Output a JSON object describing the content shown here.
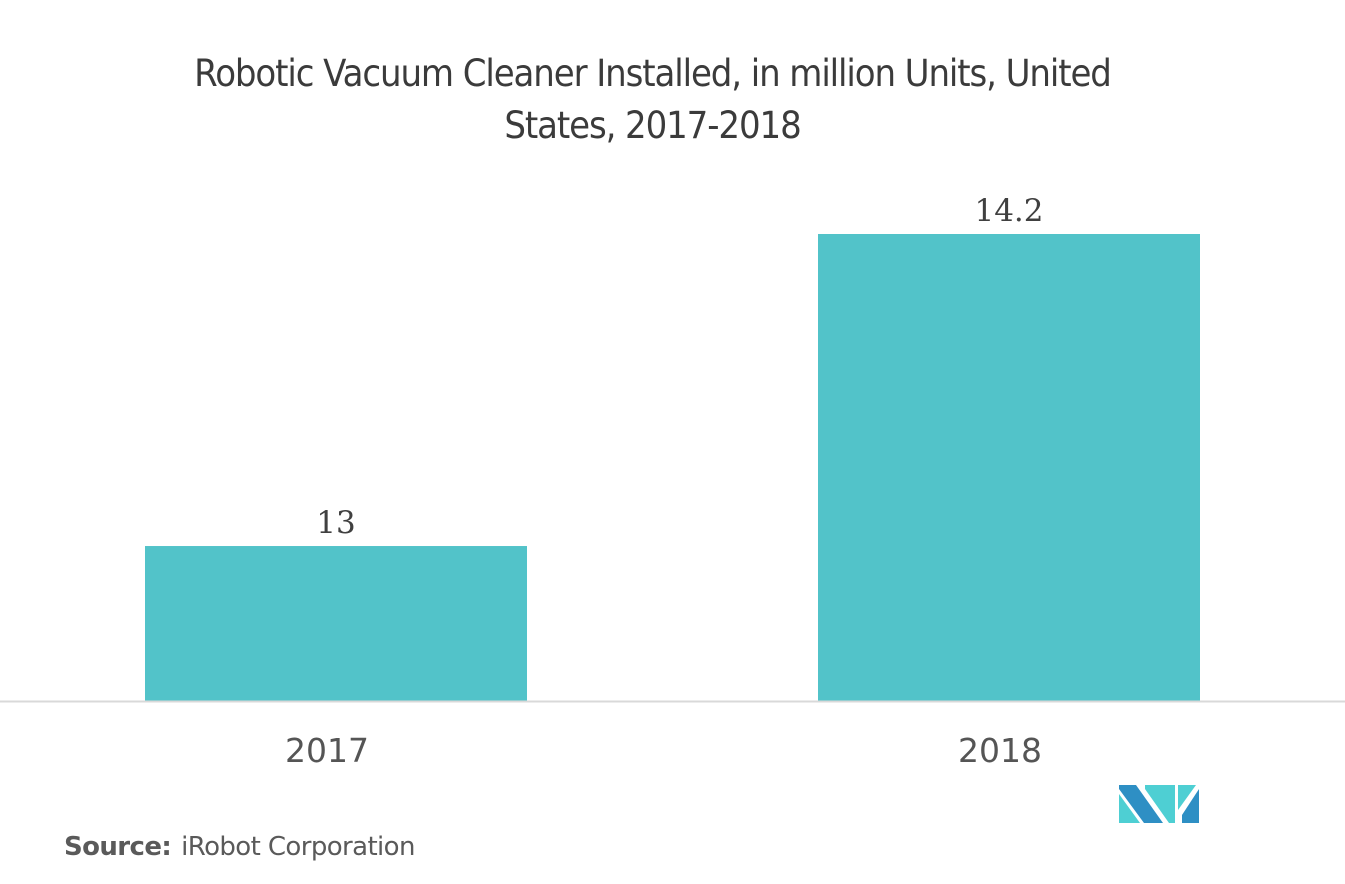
{
  "chart_data": {
    "type": "bar",
    "title": "Robotic Vacuum Cleaner Installed, in million Units, United States, 2017-2018",
    "title_lines": [
      "Robotic Vacuum Cleaner Installed, in million Units, United",
      "States, 2017-2018"
    ],
    "categories": [
      "2017",
      "2018"
    ],
    "values": [
      13,
      14.2
    ],
    "value_labels": [
      "13",
      "14.2"
    ],
    "xlabel": "",
    "ylabel": "",
    "ylim": [
      12.404,
      14.2
    ],
    "grid": false,
    "legend": "none",
    "bar_color": "#52c3c9",
    "axis_color": "#d9d9d9"
  },
  "source": {
    "label": "Source:",
    "text": "iRobot Corporation"
  },
  "logo": {
    "colors": {
      "dark": "#2e8fc4",
      "light": "#4ecfd3"
    }
  }
}
